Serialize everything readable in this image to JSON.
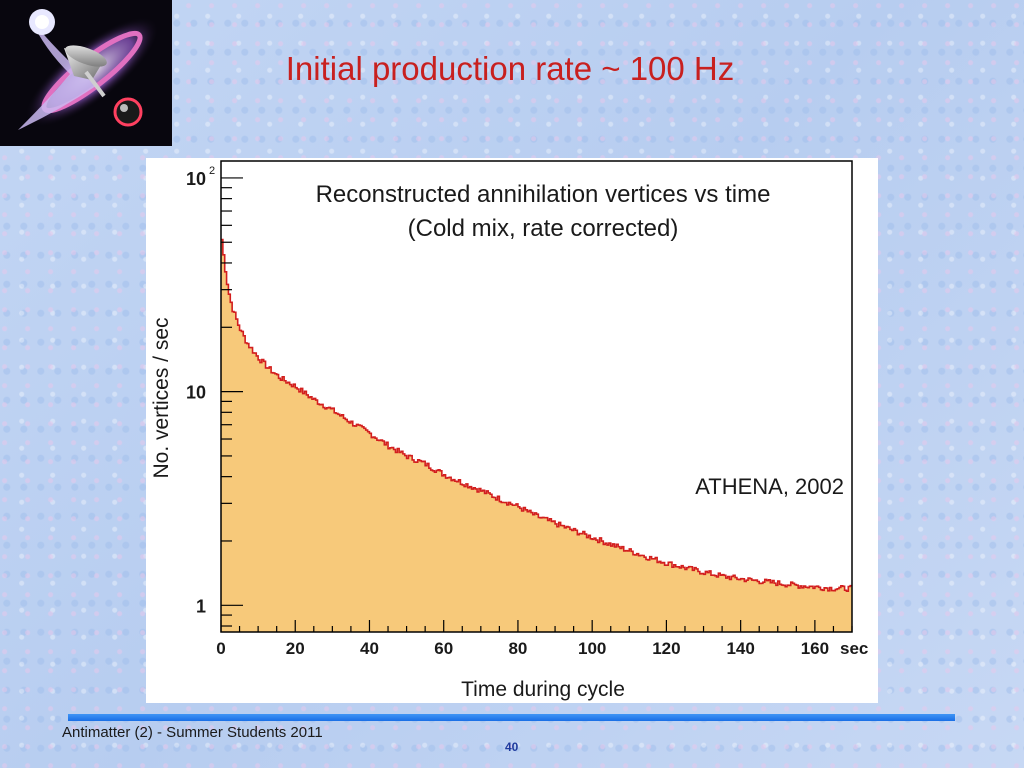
{
  "slide": {
    "title": "Initial production rate ~ 100 Hz",
    "footer": "Antimatter (2) - Summer Students 2011",
    "page_number": "40"
  },
  "colors": {
    "title": "#c8201f",
    "histogram_fill": "#f7c97a",
    "histogram_line": "#d21e1e",
    "footer_bar": "#2a84f0",
    "page_number": "#1f3b9e"
  },
  "logo": {
    "icon": "spinning-top-antimatter-logo-icon"
  },
  "chart_data": {
    "type": "area",
    "title": "Reconstructed annihilation vertices vs time",
    "subtitle": "(Cold mix, rate corrected)",
    "xlabel": "Time during cycle",
    "ylabel": "No. vertices / sec",
    "x_unit": "sec",
    "xlim": [
      0,
      170
    ],
    "ylim": [
      0.75,
      120
    ],
    "y_scale": "log",
    "x_ticks": [
      0,
      20,
      40,
      60,
      80,
      100,
      120,
      140,
      160
    ],
    "y_ticks": [
      {
        "value": 1,
        "label": "1"
      },
      {
        "value": 10,
        "label": "10"
      },
      {
        "value": 100,
        "label": "10",
        "sup": "2"
      }
    ],
    "annotation": "ATHENA, 2002",
    "x": [
      0,
      1,
      2,
      3,
      5,
      7,
      10,
      13,
      16,
      20,
      25,
      30,
      35,
      40,
      45,
      50,
      55,
      60,
      65,
      70,
      75,
      80,
      85,
      90,
      95,
      100,
      105,
      110,
      115,
      120,
      125,
      130,
      135,
      140,
      145,
      150,
      155,
      160,
      165,
      170
    ],
    "values": [
      56,
      40,
      30,
      25,
      20,
      17,
      14.5,
      12.8,
      11.6,
      10.6,
      9.2,
      8.2,
      7.2,
      6.4,
      5.6,
      5.0,
      4.6,
      4.1,
      3.75,
      3.45,
      3.15,
      2.9,
      2.62,
      2.42,
      2.24,
      2.08,
      1.93,
      1.8,
      1.68,
      1.58,
      1.5,
      1.43,
      1.37,
      1.33,
      1.3,
      1.27,
      1.24,
      1.22,
      1.2,
      1.2
    ],
    "grid": false,
    "legend": "none"
  }
}
